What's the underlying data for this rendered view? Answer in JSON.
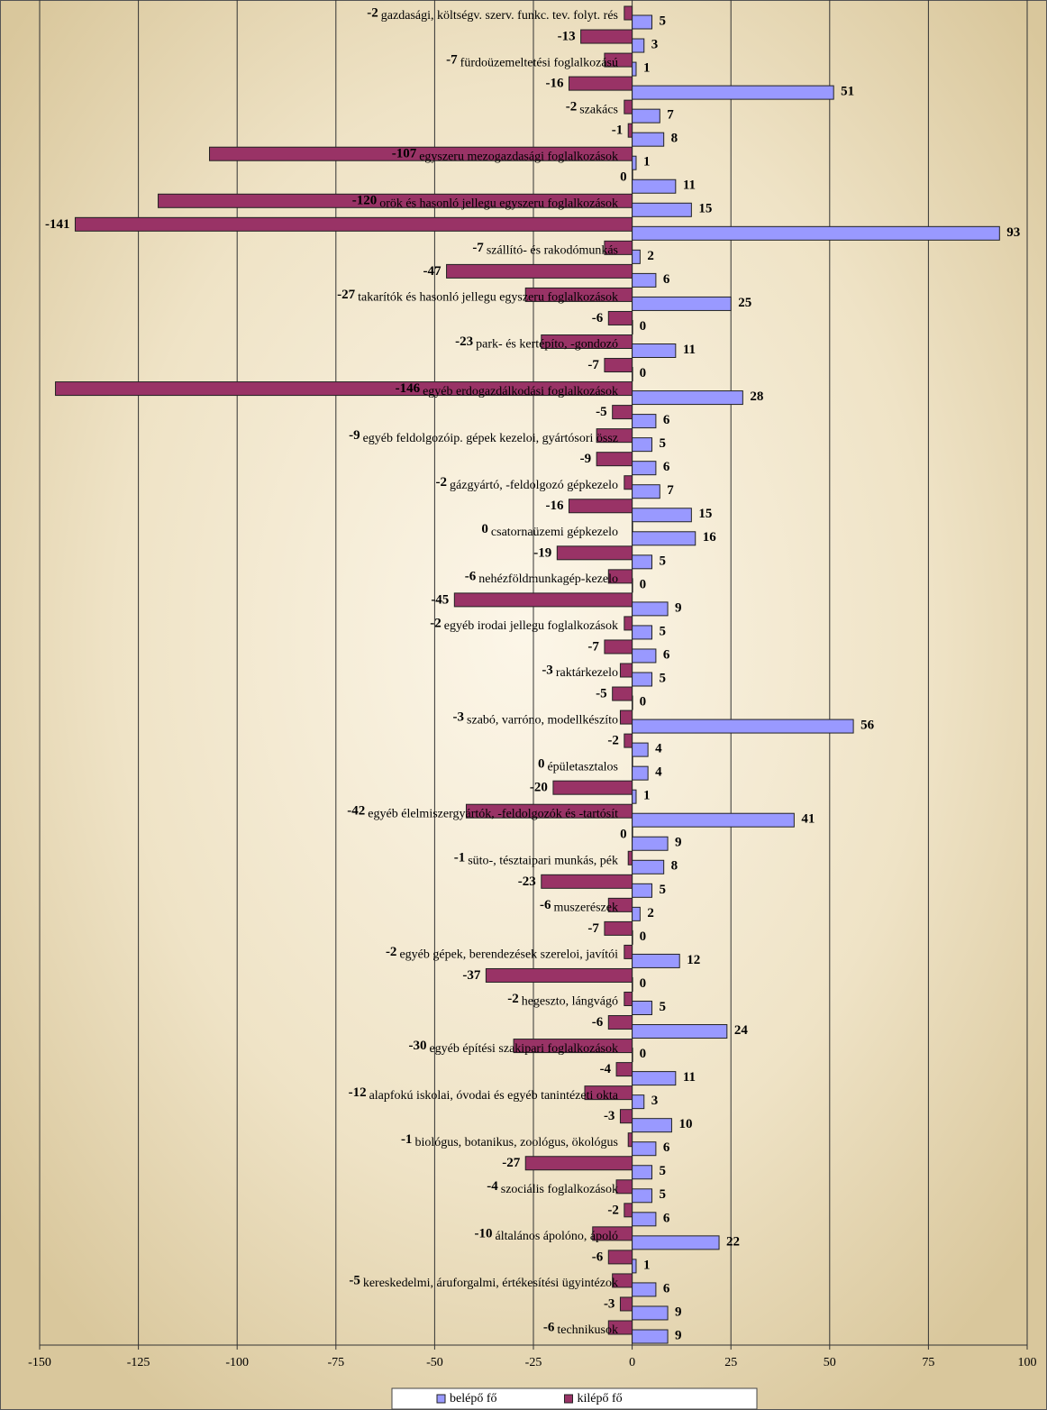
{
  "chart_data": {
    "type": "bar",
    "orientation": "horizontal",
    "categories": [
      "gazdasági, költségv. szerv. funkc. tev. folyt. rés",
      null,
      "fürdoüzemeltetési foglalkozású",
      null,
      "szakács",
      null,
      "egyszeru mezogazdasági foglalkozások",
      null,
      "orök és hasonló jellegu egyszeru foglalkozások",
      null,
      "szállító- és rakodómunkás",
      null,
      "takarítók és hasonló jellegu egyszeru foglalkozások",
      null,
      "park- és kertépíto, -gondozó",
      null,
      "egyéb erdogazdálkodási foglalkozások",
      null,
      "egyéb feldolgozóip. gépek kezeloi, gyártósori össz",
      null,
      "gázgyártó, -feldolgozó gépkezelo",
      null,
      "csatornaüzemi gépkezelo",
      null,
      "nehézföldmunkagép-kezelo",
      null,
      "egyéb irodai jellegu foglalkozások",
      null,
      "raktárkezelo",
      null,
      "szabó, varróno, modellkészíto",
      null,
      "épületasztalos",
      null,
      "egyéb élelmiszergyártók, -feldolgozók és -tartósít",
      null,
      "süto-, tésztaipari munkás, pék",
      null,
      "muszerészek",
      null,
      "egyéb gépek, berendezések szereloi, javítói",
      null,
      "hegeszto, lángvágó",
      null,
      "egyéb építési szakipari foglalkozások",
      null,
      "alapfokú iskolai, óvodai és egyéb tanintézeti okta",
      null,
      "biológus, botanikus, zoológus, ökológus",
      null,
      "szociális foglalkozások",
      null,
      "általános ápolóno, ápoló",
      null,
      "kereskedelmi, áruforgalmi, értékesítési ügyintézok",
      null,
      "technikusok"
    ],
    "series": [
      {
        "name": "belépő fő",
        "color": "#9999ff",
        "values": [
          5,
          3,
          1,
          51,
          7,
          8,
          1,
          11,
          15,
          93,
          2,
          6,
          25,
          0,
          11,
          0,
          28,
          6,
          5,
          6,
          7,
          15,
          16,
          5,
          0,
          9,
          5,
          6,
          5,
          0,
          56,
          4,
          4,
          1,
          41,
          9,
          8,
          5,
          2,
          0,
          12,
          0,
          5,
          24,
          0,
          11,
          3,
          10,
          6,
          5,
          5,
          6,
          22,
          1,
          6,
          9,
          9
        ]
      },
      {
        "name": "kilépő fő",
        "color": "#993366",
        "values": [
          -2,
          -13,
          -7,
          -16,
          -2,
          -1,
          -107,
          0,
          -120,
          -141,
          -7,
          -47,
          -27,
          -6,
          -23,
          -7,
          -146,
          -5,
          -9,
          -9,
          -2,
          -16,
          0,
          -19,
          -6,
          -45,
          -2,
          -7,
          -3,
          -5,
          -3,
          -2,
          0,
          -20,
          -42,
          0,
          -1,
          -23,
          -6,
          -7,
          -2,
          -37,
          -2,
          -6,
          -30,
          -4,
          -12,
          -3,
          -1,
          -27,
          -4,
          -2,
          -10,
          -6,
          -5,
          -3,
          -6
        ]
      }
    ],
    "xlim": [
      -150,
      100
    ],
    "xticks": [
      -150,
      -125,
      -100,
      -75,
      -50,
      -25,
      0,
      25,
      50,
      75,
      100
    ],
    "grid": true,
    "legend": "bottom"
  }
}
